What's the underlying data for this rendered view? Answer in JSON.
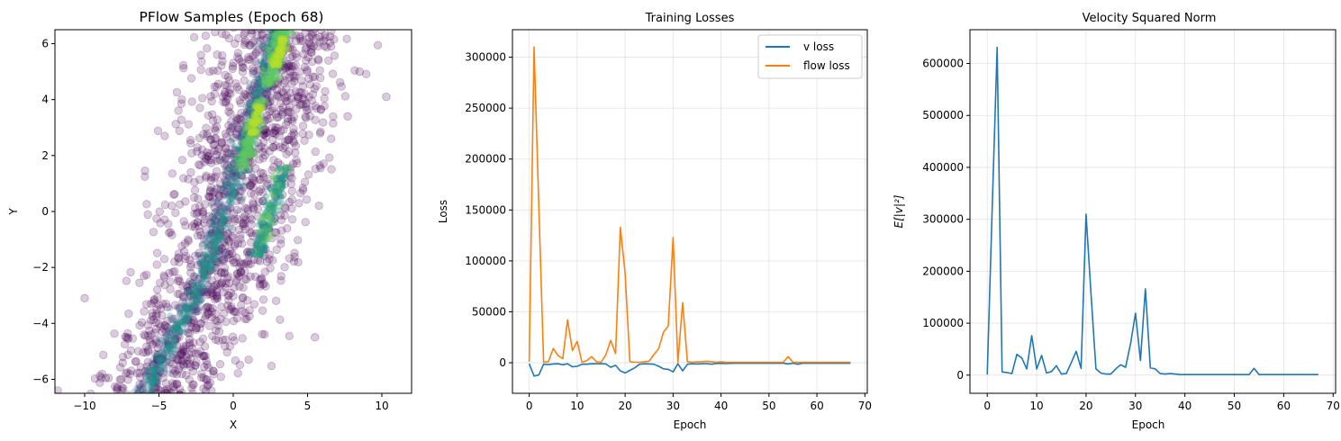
{
  "colors": {
    "v_loss": "#1f77b4",
    "flow_loss": "#ff7f0e",
    "velocity": "#1f77b4",
    "scatter_point": "#440154",
    "density_low": "#3b528b",
    "density_mid": "#21918c",
    "density_high": "#5ec962",
    "density_peak": "#b5de2b"
  },
  "chart_data": [
    {
      "type": "scatter",
      "title": "PFlow Samples (Epoch 68)",
      "xlabel": "X",
      "ylabel": "Y",
      "xlim": [
        -12,
        12
      ],
      "ylim": [
        -6.5,
        6.5
      ],
      "xticks": [
        -10,
        -5,
        0,
        5,
        10
      ],
      "yticks": [
        -6,
        -4,
        -2,
        0,
        2,
        4,
        6
      ],
      "xtick_labels": [
        "−10",
        "−5",
        "0",
        "5",
        "10"
      ],
      "ytick_labels": [
        "−6",
        "−4",
        "−2",
        "0",
        "2",
        "4",
        "6"
      ],
      "grid": false,
      "colormap": "viridis",
      "point_alpha": 0.2,
      "band_centerline": [
        [
          -6.2,
          -6.5
        ],
        [
          -2.0,
          -2.0
        ],
        [
          0.5,
          2.5
        ],
        [
          2.6,
          6.5
        ]
      ],
      "outlier_points": [
        [
          10.3,
          4.1
        ],
        [
          8.5,
          5.0
        ],
        [
          -10.0,
          -3.1
        ],
        [
          5.5,
          -4.5
        ],
        [
          7.7,
          3.4
        ]
      ]
    },
    {
      "type": "line",
      "title": "Training Losses",
      "xlabel": "Epoch",
      "ylabel": "Loss",
      "xlim": [
        -3.5,
        70.5
      ],
      "ylim": [
        -30000,
        327000
      ],
      "xticks": [
        0,
        10,
        20,
        30,
        40,
        50,
        60,
        70
      ],
      "yticks": [
        0,
        50000,
        100000,
        150000,
        200000,
        250000,
        300000
      ],
      "xtick_labels": [
        "0",
        "10",
        "20",
        "30",
        "40",
        "50",
        "60",
        "70"
      ],
      "ytick_labels": [
        "0",
        "50000",
        "100000",
        "150000",
        "200000",
        "250000",
        "300000"
      ],
      "grid": true,
      "legend": "top-right",
      "x": [
        0,
        1,
        2,
        3,
        4,
        5,
        6,
        7,
        8,
        9,
        10,
        11,
        12,
        13,
        14,
        15,
        16,
        17,
        18,
        19,
        20,
        21,
        22,
        23,
        24,
        25,
        26,
        27,
        28,
        29,
        30,
        31,
        32,
        33,
        34,
        35,
        36,
        37,
        38,
        39,
        40,
        41,
        42,
        43,
        44,
        45,
        46,
        47,
        48,
        49,
        50,
        51,
        52,
        53,
        54,
        55,
        56,
        57,
        58,
        59,
        60,
        61,
        62,
        63,
        64,
        65,
        66,
        67
      ],
      "series": [
        {
          "name": "v loss",
          "values": [
            -1000,
            -13000,
            -12000,
            -1500,
            -1800,
            -1200,
            -1000,
            -2000,
            -1000,
            -4000,
            -3500,
            -1500,
            -1500,
            -1000,
            -1000,
            -1000,
            -1200,
            -4500,
            -2500,
            -8000,
            -10000,
            -7500,
            -5000,
            -1500,
            -1000,
            -1200,
            -1500,
            -3500,
            -6000,
            -6500,
            -9000,
            -1000,
            -8000,
            -1500,
            -1000,
            -1200,
            -1000,
            -800,
            -1500,
            -700,
            -600,
            -800,
            -600,
            -500,
            -500,
            -500,
            -500,
            -500,
            -500,
            -500,
            -500,
            -500,
            -500,
            -500,
            -1200,
            -500,
            -1500,
            -500,
            -500,
            -500,
            -500,
            -500,
            -500,
            -500,
            -500,
            -500,
            -500,
            -500
          ]
        },
        {
          "name": "flow loss",
          "values": [
            1000,
            310000,
            154000,
            500,
            1000,
            14000,
            7000,
            4000,
            42000,
            12000,
            21000,
            500,
            2000,
            6000,
            1000,
            500,
            8000,
            22000,
            9000,
            133000,
            88000,
            1000,
            500,
            500,
            1000,
            1500,
            8000,
            14000,
            30000,
            36000,
            123000,
            500,
            59000,
            1000,
            500,
            800,
            1000,
            1500,
            1000,
            500,
            1000,
            500,
            500,
            500,
            500,
            500,
            500,
            500,
            500,
            500,
            500,
            500,
            500,
            500,
            6000,
            500,
            500,
            500,
            500,
            500,
            500,
            500,
            500,
            500,
            500,
            500,
            500,
            500
          ]
        }
      ]
    },
    {
      "type": "line",
      "title": "Velocity Squared Norm",
      "xlabel": "Epoch",
      "ylabel": "E[|v|²]",
      "xlim": [
        -3.5,
        70.5
      ],
      "ylim": [
        -35000,
        665000
      ],
      "xticks": [
        0,
        10,
        20,
        30,
        40,
        50,
        60,
        70
      ],
      "yticks": [
        0,
        100000,
        200000,
        300000,
        400000,
        500000,
        600000
      ],
      "xtick_labels": [
        "0",
        "10",
        "20",
        "30",
        "40",
        "50",
        "60",
        "70"
      ],
      "ytick_labels": [
        "0",
        "100000",
        "200000",
        "300000",
        "400000",
        "500000",
        "600000"
      ],
      "grid": true,
      "x": [
        0,
        1,
        2,
        3,
        4,
        5,
        6,
        7,
        8,
        9,
        10,
        11,
        12,
        13,
        14,
        15,
        16,
        17,
        18,
        19,
        20,
        21,
        22,
        23,
        24,
        25,
        26,
        27,
        28,
        29,
        30,
        31,
        32,
        33,
        34,
        35,
        36,
        37,
        38,
        39,
        40,
        41,
        42,
        43,
        44,
        45,
        46,
        47,
        48,
        49,
        50,
        51,
        52,
        53,
        54,
        55,
        56,
        57,
        58,
        59,
        60,
        61,
        62,
        63,
        64,
        65,
        66,
        67
      ],
      "series": [
        {
          "name": "",
          "values": [
            1000,
            321000,
            631000,
            6000,
            5000,
            3000,
            40000,
            33000,
            12000,
            76000,
            12000,
            38000,
            4000,
            7000,
            18000,
            2000,
            3000,
            24000,
            46000,
            13000,
            310000,
            157000,
            12000,
            4000,
            2000,
            2000,
            12000,
            20000,
            15000,
            60000,
            119000,
            28000,
            166000,
            14000,
            12000,
            3000,
            2000,
            3000,
            2000,
            1000,
            1000,
            1000,
            1000,
            1000,
            1000,
            1000,
            1000,
            1000,
            1000,
            1000,
            1000,
            1000,
            1000,
            1000,
            13000,
            1000,
            1000,
            1000,
            1000,
            1000,
            1000,
            1000,
            1000,
            1000,
            1000,
            1000,
            1000,
            1000
          ]
        }
      ]
    }
  ]
}
